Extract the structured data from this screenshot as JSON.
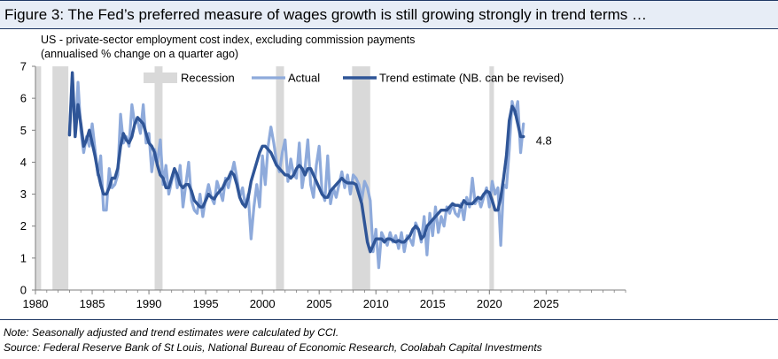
{
  "figure": {
    "title": "Figure 3: The Fed’s preferred measure of wages growth is still growing strongly in trend terms …",
    "subtitle_line1": "US - private-sector employment cost index, excluding commission payments",
    "subtitle_line2": "(annualised % change on a quarter ago)",
    "note": "Note: Seasonally adjusted and trend estimates were calculated by CCI.",
    "source": "Source: Federal Reserve Bank of St Louis, National Bureau of Economic Research, Coolabah Capital Investments"
  },
  "colors": {
    "recession": "#d9d9d9",
    "actual": "#8eaadb",
    "trend": "#2f5597",
    "title_bg": "#e7edf6",
    "rule": "#1f3864"
  },
  "chart_data": {
    "type": "line",
    "xlim": [
      1980,
      2032
    ],
    "ylim": [
      0,
      7
    ],
    "x_ticks": [
      1980,
      1985,
      1990,
      1995,
      2000,
      2005,
      2010,
      2015,
      2020,
      2025
    ],
    "y_ticks": [
      0,
      1,
      2,
      3,
      4,
      5,
      6,
      7
    ],
    "legend": [
      "Recession",
      "Actual",
      "Trend estimate (NB. can be revised)"
    ],
    "recessions": [
      [
        1980.0,
        1980.5
      ],
      [
        1981.5,
        1982.9
      ],
      [
        1990.5,
        1991.2
      ],
      [
        2001.2,
        2001.9
      ],
      [
        2007.9,
        2009.5
      ],
      [
        2020.0,
        2020.4
      ]
    ],
    "annotation": {
      "text": "4.8",
      "x": 2023.0,
      "y": 4.8
    },
    "series": [
      {
        "name": "Actual",
        "x_start": 1983.0,
        "x_step": 0.25,
        "values": [
          4.9,
          6.7,
          4.8,
          6.5,
          5.0,
          4.3,
          4.8,
          4.5,
          5.2,
          4.4,
          3.6,
          4.2,
          2.5,
          2.5,
          3.8,
          3.2,
          3.3,
          3.6,
          5.5,
          4.6,
          4.8,
          4.5,
          5.8,
          5.2,
          5.3,
          4.9,
          5.8,
          4.6,
          4.9,
          3.7,
          4.4,
          4.0,
          4.7,
          3.3,
          3.9,
          3.0,
          3.4,
          3.8,
          3.2,
          3.9,
          2.6,
          3.3,
          4.0,
          2.8,
          2.5,
          2.4,
          3.0,
          2.3,
          2.9,
          3.3,
          2.9,
          2.7,
          3.4,
          3.1,
          2.8,
          3.5,
          3.2,
          3.6,
          4.0,
          3.5,
          2.9,
          3.2,
          2.6,
          3.0,
          1.6,
          2.6,
          3.3,
          2.6,
          4.2,
          3.3,
          4.5,
          5.1,
          4.6,
          4.0,
          3.7,
          4.3,
          4.7,
          3.4,
          4.1,
          3.6,
          3.5,
          4.6,
          3.2,
          3.8,
          4.7,
          3.3,
          2.9,
          3.9,
          4.5,
          3.1,
          2.8,
          4.2,
          2.7,
          3.2,
          2.9,
          3.3,
          3.7,
          3.2,
          3.6,
          3.0,
          3.6,
          3.5,
          3.3,
          2.8,
          3.4,
          3.2,
          2.8,
          1.2,
          1.9,
          0.7,
          1.8,
          1.6,
          1.4,
          1.8,
          1.5,
          1.7,
          1.3,
          1.8,
          1.2,
          1.7,
          1.6,
          1.4,
          2.1,
          1.9,
          1.5,
          2.3,
          1.1,
          2.4,
          1.7,
          2.6,
          1.8,
          2.3,
          2.0,
          2.6,
          2.4,
          2.7,
          2.4,
          2.3,
          2.7,
          2.2,
          2.9,
          2.6,
          3.5,
          2.7,
          2.9,
          2.6,
          2.9,
          3.2,
          2.6,
          3.4,
          3.0,
          3.2,
          1.4,
          3.3,
          3.2,
          4.4,
          5.9,
          5.5,
          5.9,
          4.3,
          5.2
        ]
      },
      {
        "name": "Trend estimate (NB. can be revised)",
        "x_start": 1983.0,
        "x_step": 0.25,
        "values": [
          4.85,
          6.8,
          4.8,
          5.8,
          5.2,
          4.5,
          4.7,
          5.0,
          4.6,
          4.2,
          3.7,
          3.3,
          3.0,
          3.0,
          3.2,
          3.5,
          3.5,
          3.8,
          4.5,
          4.9,
          4.7,
          4.6,
          4.8,
          5.2,
          5.4,
          5.3,
          5.2,
          4.9,
          4.6,
          4.5,
          4.3,
          3.9,
          3.6,
          3.5,
          3.2,
          3.2,
          3.5,
          3.8,
          3.6,
          3.3,
          3.2,
          3.3,
          3.3,
          3.1,
          2.8,
          2.7,
          2.6,
          2.6,
          2.8,
          3.0,
          2.9,
          2.85,
          3.0,
          3.1,
          3.2,
          3.4,
          3.5,
          3.7,
          3.6,
          3.3,
          2.9,
          2.7,
          2.6,
          2.9,
          3.4,
          3.7,
          4.0,
          4.3,
          4.5,
          4.5,
          4.4,
          4.3,
          4.1,
          3.9,
          3.8,
          3.7,
          3.6,
          3.6,
          3.5,
          3.6,
          3.8,
          3.9,
          3.8,
          3.6,
          3.8,
          3.8,
          3.6,
          3.4,
          3.2,
          3.0,
          2.9,
          2.9,
          3.1,
          3.2,
          3.3,
          3.4,
          3.5,
          3.4,
          3.35,
          3.35,
          3.35,
          3.3,
          3.0,
          2.7,
          2.1,
          1.5,
          1.2,
          1.4,
          1.6,
          1.6,
          1.6,
          1.5,
          1.6,
          1.6,
          1.55,
          1.5,
          1.55,
          1.5,
          1.5,
          1.6,
          1.7,
          1.9,
          2.0,
          1.9,
          1.6,
          1.7,
          2.0,
          2.1,
          2.2,
          2.3,
          2.4,
          2.5,
          2.5,
          2.5,
          2.6,
          2.7,
          2.65,
          2.65,
          2.6,
          2.8,
          2.7,
          2.7,
          2.7,
          2.8,
          2.9,
          2.85,
          3.0,
          3.1,
          3.05,
          2.8,
          2.5,
          2.5,
          2.9,
          3.5,
          4.2,
          5.3,
          5.75,
          5.6,
          5.2,
          4.8,
          4.8
        ]
      }
    ],
    "title": "Figure 3: The Fed’s preferred measure of wages growth is still growing strongly in trend terms …",
    "xlabel": "",
    "ylabel": "US - private-sector employment cost index, excluding commission payments (annualised % change on a quarter ago)"
  }
}
